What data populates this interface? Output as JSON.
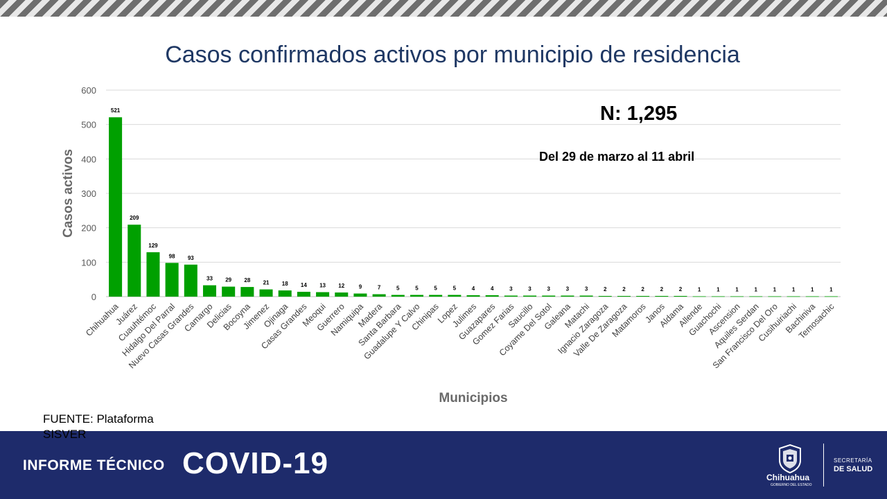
{
  "title": "Casos confirmados activos por municipio de residencia",
  "n_label": "N: 1,295",
  "date_range": "Del 29 de marzo al 11 abril",
  "source": "FUENTE: Plataforma SISVER",
  "footer": {
    "informe": "INFORME TÉCNICO",
    "covid": "COVID-19",
    "state": "Chihuahua",
    "gov": "GOBIERNO DEL ESTADO",
    "secretaria": "SECRETARÍA",
    "salud": "DE SALUD"
  },
  "colors": {
    "bar": "#00a000",
    "title": "#1f3864",
    "footer": "#1e2b6b"
  },
  "chart_data": {
    "type": "bar",
    "xlabel": "Municipios",
    "ylabel": "Casos activos",
    "ylim": [
      0,
      600
    ],
    "yticks": [
      0,
      100,
      200,
      300,
      400,
      500,
      600
    ],
    "grid": true,
    "categories": [
      "Chihuahua",
      "Juárez",
      "Cuauhtémoc",
      "Hidalgo Del Parral",
      "Nuevo Casas Grandes",
      "Camargo",
      "Delicias",
      "Bocoyna",
      "Jimenez",
      "Ojinaga",
      "Casas Grandes",
      "Meoqui",
      "Guerrero",
      "Namiquipa",
      "Madera",
      "Santa Barbara",
      "Guadalupe Y Calvo",
      "Chinipas",
      "Lopez",
      "Julimes",
      "Guazapares",
      "Gomez Farias",
      "Saucillo",
      "Coyame Del Sotol",
      "Galeana",
      "Matachi",
      "Ignacio Zaragoza",
      "Valle De Zaragoza",
      "Matamoros",
      "Janos",
      "Aldama",
      "Allende",
      "Guachochi",
      "Ascension",
      "Aquiles Serdan",
      "San Francisco Del Oro",
      "Cusihuiriachi",
      "Bachiniva",
      "Temosachic"
    ],
    "values": [
      521,
      209,
      129,
      98,
      93,
      33,
      29,
      28,
      21,
      18,
      14,
      13,
      12,
      9,
      7,
      5,
      5,
      5,
      5,
      4,
      4,
      3,
      3,
      3,
      3,
      3,
      2,
      2,
      2,
      2,
      2,
      1,
      1,
      1,
      1,
      1,
      1,
      1,
      1
    ]
  }
}
